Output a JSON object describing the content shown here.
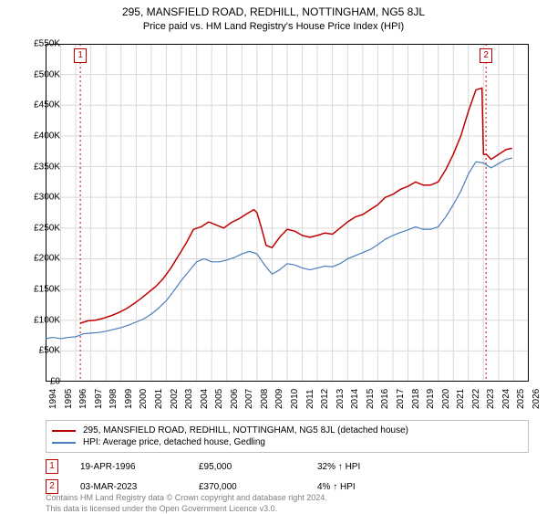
{
  "title": "295, MANSFIELD ROAD, REDHILL, NOTTINGHAM, NG5 8JL",
  "subtitle": "Price paid vs. HM Land Registry's House Price Index (HPI)",
  "chart": {
    "type": "line",
    "background_color": "#ffffff",
    "grid_color": "#d9d9d9",
    "axis_color": "#000000",
    "x_years": [
      1994,
      1995,
      1996,
      1997,
      1998,
      1999,
      2000,
      2001,
      2002,
      2003,
      2004,
      2005,
      2006,
      2007,
      2008,
      2009,
      2010,
      2011,
      2012,
      2013,
      2014,
      2015,
      2016,
      2017,
      2018,
      2019,
      2020,
      2021,
      2022,
      2023,
      2024,
      2025,
      2026
    ],
    "xlim": [
      1994,
      2026
    ],
    "ylim": [
      0,
      550
    ],
    "ytick_step": 50,
    "ytick_labels": [
      "£0",
      "£50K",
      "£100K",
      "£150K",
      "£200K",
      "£250K",
      "£300K",
      "£350K",
      "£400K",
      "£450K",
      "£500K",
      "£550K"
    ],
    "label_fontsize": 10,
    "series": [
      {
        "name": "295, MANSFIELD ROAD, REDHILL, NOTTINGHAM, NG5 8JL (detached house)",
        "color": "#c00000",
        "line_width": 1.5,
        "points": [
          [
            1996.3,
            95
          ],
          [
            1996.8,
            99
          ],
          [
            1997.3,
            100
          ],
          [
            1997.8,
            103
          ],
          [
            1998.3,
            107
          ],
          [
            1998.8,
            112
          ],
          [
            1999.3,
            118
          ],
          [
            1999.8,
            126
          ],
          [
            2000.3,
            135
          ],
          [
            2000.8,
            145
          ],
          [
            2001.3,
            155
          ],
          [
            2001.8,
            168
          ],
          [
            2002.3,
            185
          ],
          [
            2002.8,
            205
          ],
          [
            2003.3,
            225
          ],
          [
            2003.8,
            248
          ],
          [
            2004.3,
            252
          ],
          [
            2004.8,
            260
          ],
          [
            2005.3,
            255
          ],
          [
            2005.8,
            250
          ],
          [
            2006.3,
            259
          ],
          [
            2006.8,
            265
          ],
          [
            2007.3,
            273
          ],
          [
            2007.8,
            280
          ],
          [
            2008.0,
            275
          ],
          [
            2008.3,
            250
          ],
          [
            2008.6,
            222
          ],
          [
            2009.0,
            218
          ],
          [
            2009.5,
            235
          ],
          [
            2010.0,
            248
          ],
          [
            2010.5,
            245
          ],
          [
            2011.0,
            238
          ],
          [
            2011.5,
            235
          ],
          [
            2012.0,
            238
          ],
          [
            2012.5,
            242
          ],
          [
            2013.0,
            240
          ],
          [
            2013.5,
            250
          ],
          [
            2014.0,
            260
          ],
          [
            2014.5,
            268
          ],
          [
            2015.0,
            272
          ],
          [
            2015.5,
            280
          ],
          [
            2016.0,
            288
          ],
          [
            2016.5,
            300
          ],
          [
            2017.0,
            305
          ],
          [
            2017.5,
            313
          ],
          [
            2018.0,
            318
          ],
          [
            2018.5,
            325
          ],
          [
            2019.0,
            320
          ],
          [
            2019.5,
            320
          ],
          [
            2020.0,
            325
          ],
          [
            2020.5,
            345
          ],
          [
            2021.0,
            370
          ],
          [
            2021.5,
            400
          ],
          [
            2022.0,
            440
          ],
          [
            2022.5,
            475
          ],
          [
            2022.9,
            478
          ],
          [
            2023.0,
            370
          ],
          [
            2023.2,
            370
          ],
          [
            2023.5,
            362
          ],
          [
            2024.0,
            370
          ],
          [
            2024.5,
            378
          ],
          [
            2024.9,
            380
          ]
        ]
      },
      {
        "name": "HPI: Average price, detached house, Gedling",
        "color": "#4a7ebb",
        "line_width": 1.2,
        "points": [
          [
            1994.0,
            70
          ],
          [
            1994.5,
            72
          ],
          [
            1995.0,
            70
          ],
          [
            1995.5,
            72
          ],
          [
            1996.0,
            73
          ],
          [
            1996.5,
            78
          ],
          [
            1997.0,
            79
          ],
          [
            1997.5,
            80
          ],
          [
            1998.0,
            82
          ],
          [
            1998.5,
            85
          ],
          [
            1999.0,
            88
          ],
          [
            1999.5,
            92
          ],
          [
            2000.0,
            97
          ],
          [
            2000.5,
            102
          ],
          [
            2001.0,
            110
          ],
          [
            2001.5,
            120
          ],
          [
            2002.0,
            132
          ],
          [
            2002.5,
            148
          ],
          [
            2003.0,
            165
          ],
          [
            2003.5,
            180
          ],
          [
            2004.0,
            195
          ],
          [
            2004.5,
            200
          ],
          [
            2005.0,
            195
          ],
          [
            2005.5,
            195
          ],
          [
            2006.0,
            198
          ],
          [
            2006.5,
            202
          ],
          [
            2007.0,
            208
          ],
          [
            2007.5,
            212
          ],
          [
            2008.0,
            208
          ],
          [
            2008.5,
            190
          ],
          [
            2009.0,
            175
          ],
          [
            2009.5,
            182
          ],
          [
            2010.0,
            192
          ],
          [
            2010.5,
            190
          ],
          [
            2011.0,
            185
          ],
          [
            2011.5,
            182
          ],
          [
            2012.0,
            185
          ],
          [
            2012.5,
            188
          ],
          [
            2013.0,
            187
          ],
          [
            2013.5,
            192
          ],
          [
            2014.0,
            200
          ],
          [
            2014.5,
            205
          ],
          [
            2015.0,
            210
          ],
          [
            2015.5,
            215
          ],
          [
            2016.0,
            223
          ],
          [
            2016.5,
            232
          ],
          [
            2017.0,
            238
          ],
          [
            2017.5,
            243
          ],
          [
            2018.0,
            247
          ],
          [
            2018.5,
            252
          ],
          [
            2019.0,
            248
          ],
          [
            2019.5,
            248
          ],
          [
            2020.0,
            252
          ],
          [
            2020.5,
            268
          ],
          [
            2021.0,
            288
          ],
          [
            2021.5,
            310
          ],
          [
            2022.0,
            338
          ],
          [
            2022.5,
            358
          ],
          [
            2023.0,
            356
          ],
          [
            2023.5,
            348
          ],
          [
            2024.0,
            355
          ],
          [
            2024.5,
            362
          ],
          [
            2024.9,
            364
          ]
        ]
      }
    ],
    "markers": [
      {
        "label": "1",
        "x": 1996.3,
        "dash_color": "#c00000"
      },
      {
        "label": "2",
        "x": 2023.17,
        "dash_color": "#c00000"
      }
    ]
  },
  "legend": [
    {
      "color": "#c00000",
      "label": "295, MANSFIELD ROAD, REDHILL, NOTTINGHAM, NG5 8JL (detached house)"
    },
    {
      "color": "#4a7ebb",
      "label": "HPI: Average price, detached house, Gedling"
    }
  ],
  "data_rows": [
    {
      "marker": "1",
      "date": "19-APR-1996",
      "price": "£95,000",
      "delta": "32% ↑ HPI"
    },
    {
      "marker": "2",
      "date": "03-MAR-2023",
      "price": "£370,000",
      "delta": "4% ↑ HPI"
    }
  ],
  "footer_line1": "Contains HM Land Registry data © Crown copyright and database right 2024.",
  "footer_line2": "This data is licensed under the Open Government Licence v3.0."
}
